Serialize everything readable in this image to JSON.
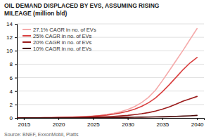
{
  "chart_data": {
    "type": "line",
    "title": "OIL DEMAND DISPLACED BY EVS, ASSUMING RISING\nMILEAGE (million b/d)",
    "source": "Source: BNEF, ExxonMobil, Platts",
    "x": [
      2014,
      2015,
      2016,
      2017,
      2018,
      2019,
      2020,
      2021,
      2022,
      2023,
      2024,
      2025,
      2026,
      2027,
      2028,
      2029,
      2030,
      2031,
      2032,
      2033,
      2034,
      2035,
      2036,
      2037,
      2038,
      2039,
      2040
    ],
    "xlim": [
      2014,
      2041
    ],
    "xticks": [
      2015,
      2020,
      2025,
      2030,
      2035,
      2040
    ],
    "ylim": [
      0,
      14
    ],
    "yticks": [
      0,
      2,
      4,
      6,
      8,
      10,
      12,
      14
    ],
    "grid": true,
    "legend": "upper left",
    "series": [
      {
        "name": "27.1% CAGR in no. of EVs",
        "color": "#f5aaaa",
        "values": [
          0.0,
          0.01,
          0.02,
          0.03,
          0.04,
          0.06,
          0.08,
          0.1,
          0.13,
          0.17,
          0.22,
          0.29,
          0.39,
          0.52,
          0.7,
          0.94,
          1.26,
          1.7,
          2.28,
          3.07,
          4.13,
          5.55,
          7.05,
          8.56,
          10.1,
          11.7,
          13.3
        ]
      },
      {
        "name": "25% CAGR in no. of EVs",
        "color": "#d94040",
        "values": [
          0.0,
          0.01,
          0.02,
          0.03,
          0.04,
          0.05,
          0.07,
          0.09,
          0.12,
          0.15,
          0.19,
          0.25,
          0.33,
          0.43,
          0.57,
          0.75,
          0.99,
          1.3,
          1.72,
          2.26,
          2.97,
          3.91,
          4.95,
          6.07,
          7.2,
          8.2,
          9.0
        ]
      },
      {
        "name": "20% CAGR in no. of EVs",
        "color": "#9b1c1c",
        "values": [
          0.0,
          0.01,
          0.01,
          0.02,
          0.02,
          0.03,
          0.04,
          0.05,
          0.06,
          0.08,
          0.1,
          0.12,
          0.15,
          0.19,
          0.24,
          0.3,
          0.38,
          0.49,
          0.62,
          0.8,
          1.02,
          1.31,
          1.65,
          2.07,
          2.5,
          2.85,
          3.2
        ]
      },
      {
        "name": "10% CAGR in no. of EVs",
        "color": "#4a0808",
        "values": [
          0.0,
          0.01,
          0.01,
          0.01,
          0.01,
          0.02,
          0.02,
          0.02,
          0.03,
          0.03,
          0.04,
          0.04,
          0.05,
          0.06,
          0.07,
          0.08,
          0.09,
          0.1,
          0.12,
          0.13,
          0.15,
          0.17,
          0.2,
          0.23,
          0.27,
          0.32,
          0.38
        ]
      }
    ]
  }
}
